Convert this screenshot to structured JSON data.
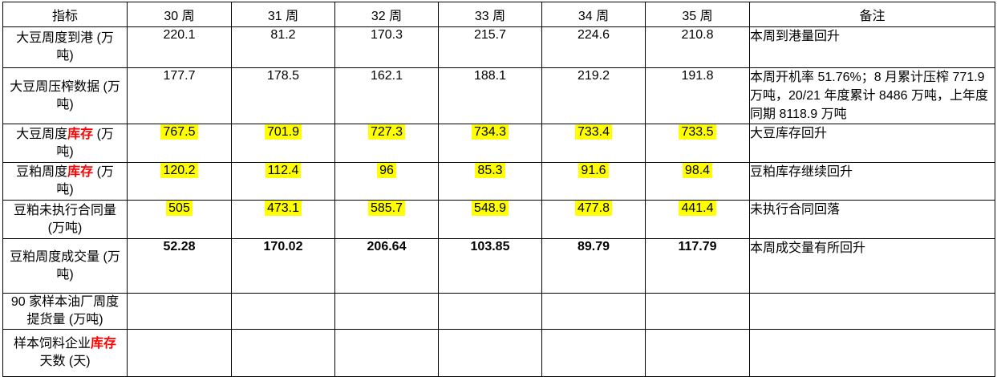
{
  "colors": {
    "highlight": "#FFFF00",
    "red_text": "#FF0000",
    "border": "#000000",
    "background": "#FFFFFF"
  },
  "table": {
    "header": [
      "指标",
      "30 周",
      "31 周",
      "32 周",
      "33 周",
      "34 周",
      "35 周",
      "备注"
    ],
    "header_keys": [
      "indicator",
      "week-30",
      "week-31",
      "week-32",
      "week-33",
      "week-34",
      "week-35",
      "remarks"
    ],
    "rows": [
      {
        "id": "soybean-weekly-arrival",
        "label_parts": [
          {
            "text": "大豆周度到港 (万\n吨)"
          }
        ],
        "values": [
          "220.1",
          "81.2",
          "170.3",
          "215.7",
          "224.6",
          "210.8"
        ],
        "value_style": "plain",
        "remark": "本周到港量回升"
      },
      {
        "id": "soybean-weekly-crush",
        "label_parts": [
          {
            "text": "大豆周压榨数据 (万\n吨)"
          }
        ],
        "values": [
          "177.7",
          "178.5",
          "162.1",
          "188.1",
          "219.2",
          "191.8"
        ],
        "value_style": "plain",
        "remark": "本周开机率 51.76%；8 月累计压榨 771.9 万吨，20/21 年度累计 8486 万吨，上年度同期 8118.9 万吨"
      },
      {
        "id": "soybean-weekly-inventory",
        "label_parts": [
          {
            "text": "大豆周度"
          },
          {
            "text": "库存",
            "red": true
          },
          {
            "text": " (万\n吨)"
          }
        ],
        "values": [
          "767.5",
          "701.9",
          "727.3",
          "734.3",
          "733.4",
          "733.5"
        ],
        "value_style": "highlight",
        "remark": "大豆库存回升"
      },
      {
        "id": "soymeal-weekly-inventory",
        "label_parts": [
          {
            "text": "豆粕周度"
          },
          {
            "text": "库存",
            "red": true
          },
          {
            "text": " (万\n吨)"
          }
        ],
        "values": [
          "120.2",
          "112.4",
          "96",
          "85.3",
          "91.6",
          "98.4"
        ],
        "value_style": "highlight",
        "remark": "豆粕库存继续回升"
      },
      {
        "id": "soymeal-outstanding-contracts",
        "label_parts": [
          {
            "text": "豆粕未执行合同量\n(万吨)"
          }
        ],
        "values": [
          "505",
          "473.1",
          "585.7",
          "548.9",
          "477.8",
          "441.4"
        ],
        "value_style": "highlight",
        "remark": "未执行合同回落"
      },
      {
        "id": "soymeal-weekly-trade-volume",
        "label_parts": [
          {
            "text": "豆粕周度成交量 (万\n吨)"
          }
        ],
        "values": [
          "52.28",
          "170.02",
          "206.64",
          "103.85",
          "89.79",
          "117.79"
        ],
        "value_style": "bold",
        "remark": "本周成交量有所回升"
      },
      {
        "id": "sample-oil-mills-weekly-pickup",
        "label_parts": [
          {
            "text": "90 家样本油厂周度\n提货量 (万吨)"
          }
        ],
        "values": [
          "",
          "",
          "",
          "",
          "",
          ""
        ],
        "value_style": "plain",
        "remark": ""
      },
      {
        "id": "sample-feed-enterprise-inventory-days",
        "label_parts": [
          {
            "text": "样本饲料企业"
          },
          {
            "text": "库存",
            "red": true
          },
          {
            "text": "\n天数 (天)"
          }
        ],
        "values": [
          "",
          "",
          "",
          "",
          "",
          ""
        ],
        "value_style": "plain",
        "remark": ""
      }
    ]
  }
}
